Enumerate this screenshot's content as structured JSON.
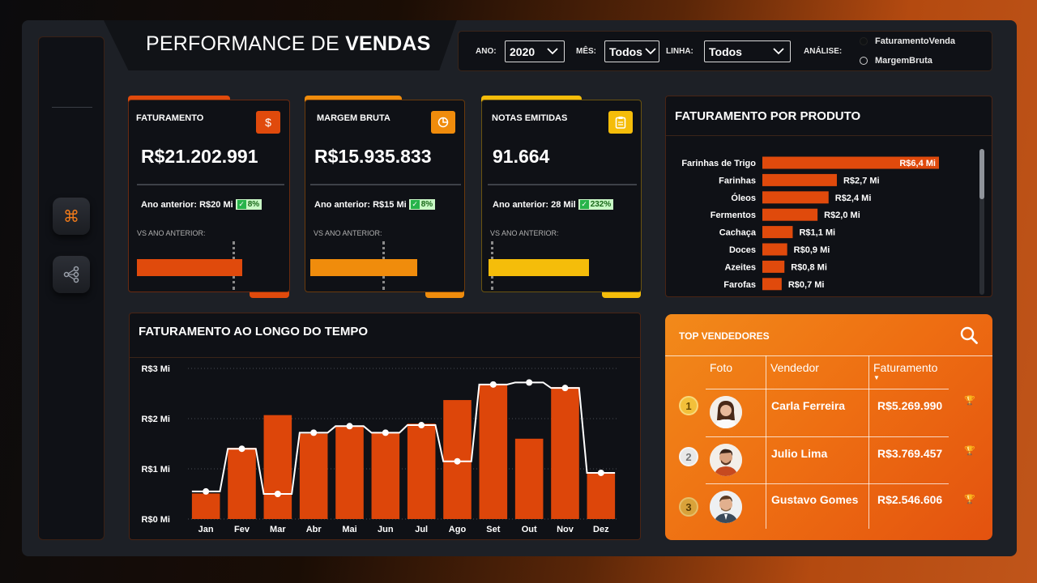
{
  "header": {
    "title_light": "PERFORMANCE DE ",
    "title_bold": "VENDAS"
  },
  "filters": {
    "ano_label": "ANO:",
    "ano_value": "2020",
    "mes_label": "MÊS:",
    "mes_value": "Todos",
    "linha_label": "LINHA:",
    "linha_value": "Todos",
    "analise_label": "ANÁLISE:",
    "analise_options": [
      "FaturamentoVenda",
      "MargemBruta"
    ],
    "analise_selected": "FaturamentoVenda"
  },
  "kpis": [
    {
      "title": "FATURAMENTO",
      "value": "R$21.202.991",
      "prev": "Ano anterior: R$20 Mi",
      "delta": "8%",
      "vs": "VS ANO ANTERIOR:",
      "icon": "dollar-icon",
      "color": "#e04a0c"
    },
    {
      "title": "MARGEM BRUTA",
      "value": "R$15.935.833",
      "prev": "Ano anterior: R$15 Mi",
      "delta": "8%",
      "vs": "VS ANO ANTERIOR:",
      "icon": "pie-chart-icon",
      "color": "#f08c0c"
    },
    {
      "title": "NOTAS EMITIDAS",
      "value": "91.664",
      "prev": "Ano anterior: 28 Mil",
      "delta": "232%",
      "vs": "VS ANO ANTERIOR:",
      "icon": "clipboard-icon",
      "color": "#f5bd0a"
    }
  ],
  "produtos": {
    "title": "FATURAMENTO POR PRODUTO",
    "items": [
      {
        "name": "Farinhas de Trigo",
        "label": "R$6,4 Mi",
        "value": 6.4
      },
      {
        "name": "Farinhas",
        "label": "R$2,7 Mi",
        "value": 2.7
      },
      {
        "name": "Óleos",
        "label": "R$2,4 Mi",
        "value": 2.4
      },
      {
        "name": "Fermentos",
        "label": "R$2,0 Mi",
        "value": 2.0
      },
      {
        "name": "Cachaça",
        "label": "R$1,1 Mi",
        "value": 1.1
      },
      {
        "name": "Doces",
        "label": "R$0,9 Mi",
        "value": 0.9
      },
      {
        "name": "Azeites",
        "label": "R$0,8 Mi",
        "value": 0.8
      },
      {
        "name": "Farofas",
        "label": "R$0,7 Mi",
        "value": 0.7
      }
    ]
  },
  "tempo": {
    "title": "FATURAMENTO AO LONGO DO TEMPO"
  },
  "chart_data": {
    "type": "bar",
    "title": "FATURAMENTO AO LONGO DO TEMPO",
    "categories": [
      "Jan",
      "Fev",
      "Mar",
      "Abr",
      "Mai",
      "Jun",
      "Jul",
      "Ago",
      "Set",
      "Out",
      "Nov",
      "Dez"
    ],
    "series": [
      {
        "values": [
          0.51,
          1.42,
          2.07,
          1.7,
          1.85,
          1.73,
          1.9,
          2.37,
          2.68,
          1.6,
          2.63,
          0.92
        ]
      },
      {
        "values": [
          0.55,
          1.4,
          0.5,
          1.72,
          1.85,
          1.72,
          1.87,
          1.15,
          2.68,
          2.72,
          2.61,
          0.92
        ]
      }
    ],
    "yticks": [
      "R$0 Mi",
      "R$1 Mi",
      "R$2 Mi",
      "R$3 Mi"
    ],
    "ylim": [
      0,
      3
    ]
  },
  "top": {
    "title": "TOP VENDEDORES",
    "headers": [
      "Foto",
      "Vendedor",
      "Faturamento"
    ],
    "rows": [
      {
        "rank": "1",
        "name": "Carla Ferreira",
        "value": "R$5.269.990"
      },
      {
        "rank": "2",
        "name": "Julio Lima",
        "value": "R$3.769.457"
      },
      {
        "rank": "3",
        "name": "Gustavo Gomes",
        "value": "R$2.546.606"
      }
    ]
  }
}
